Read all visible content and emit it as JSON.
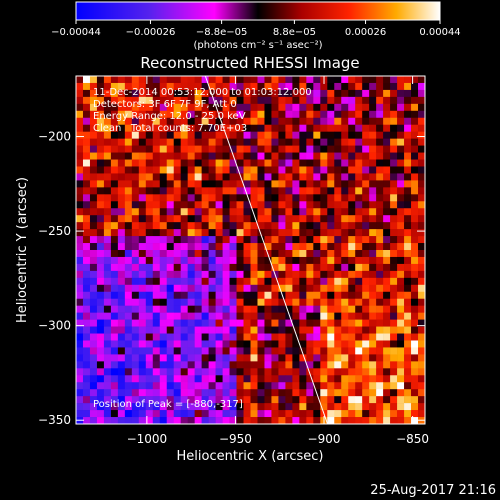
{
  "chart_data": {
    "type": "heatmap",
    "title": "Reconstructed RHESSI Image",
    "xlabel": "Heliocentric X (arcsec)",
    "ylabel": "Heliocentric Y (arcsec)",
    "xlim": [
      -1040,
      -843
    ],
    "ylim": [
      -352,
      -168
    ],
    "x_ticks": [
      -1000,
      -950,
      -900,
      -850
    ],
    "x_tick_labels": [
      "−1000",
      "−950",
      "−900",
      "−850"
    ],
    "y_ticks": [
      -200,
      -250,
      -300,
      -350
    ],
    "y_tick_labels": [
      "−200",
      "−250",
      "−300",
      "−350"
    ],
    "colorbar": {
      "ticks": [
        -0.00044,
        -0.00026,
        -8.8e-05,
        8.8e-05,
        0.00026,
        0.00044
      ],
      "tick_labels": [
        "−0.00044",
        "−0.00026",
        "−8.8e−05",
        "8.8e−05",
        "0.00026",
        "0.00044"
      ],
      "unit_label": "(photons cm⁻² s⁻¹ asec⁻²)",
      "range": [
        -0.00044,
        0.00044
      ]
    },
    "annotations": {
      "time_range": "11-Dec-2014 00:53:12.000 to 01:03:12.000",
      "detectors": "Detectors: 3F 6F 7F 9F, Att 0",
      "energy_range": "Energy Range: 12.0 - 25.0 keV",
      "method_counts": "Clean   Total counts: 7.70E+03",
      "peak": "Position of Peak = [-880,-317]"
    },
    "limb_line": {
      "x": [
        -967,
        -898
      ],
      "y": [
        -168,
        -352
      ]
    },
    "legend": "none",
    "grid": false
  },
  "footer": {
    "timestamp": "25-Aug-2017 21:16"
  }
}
